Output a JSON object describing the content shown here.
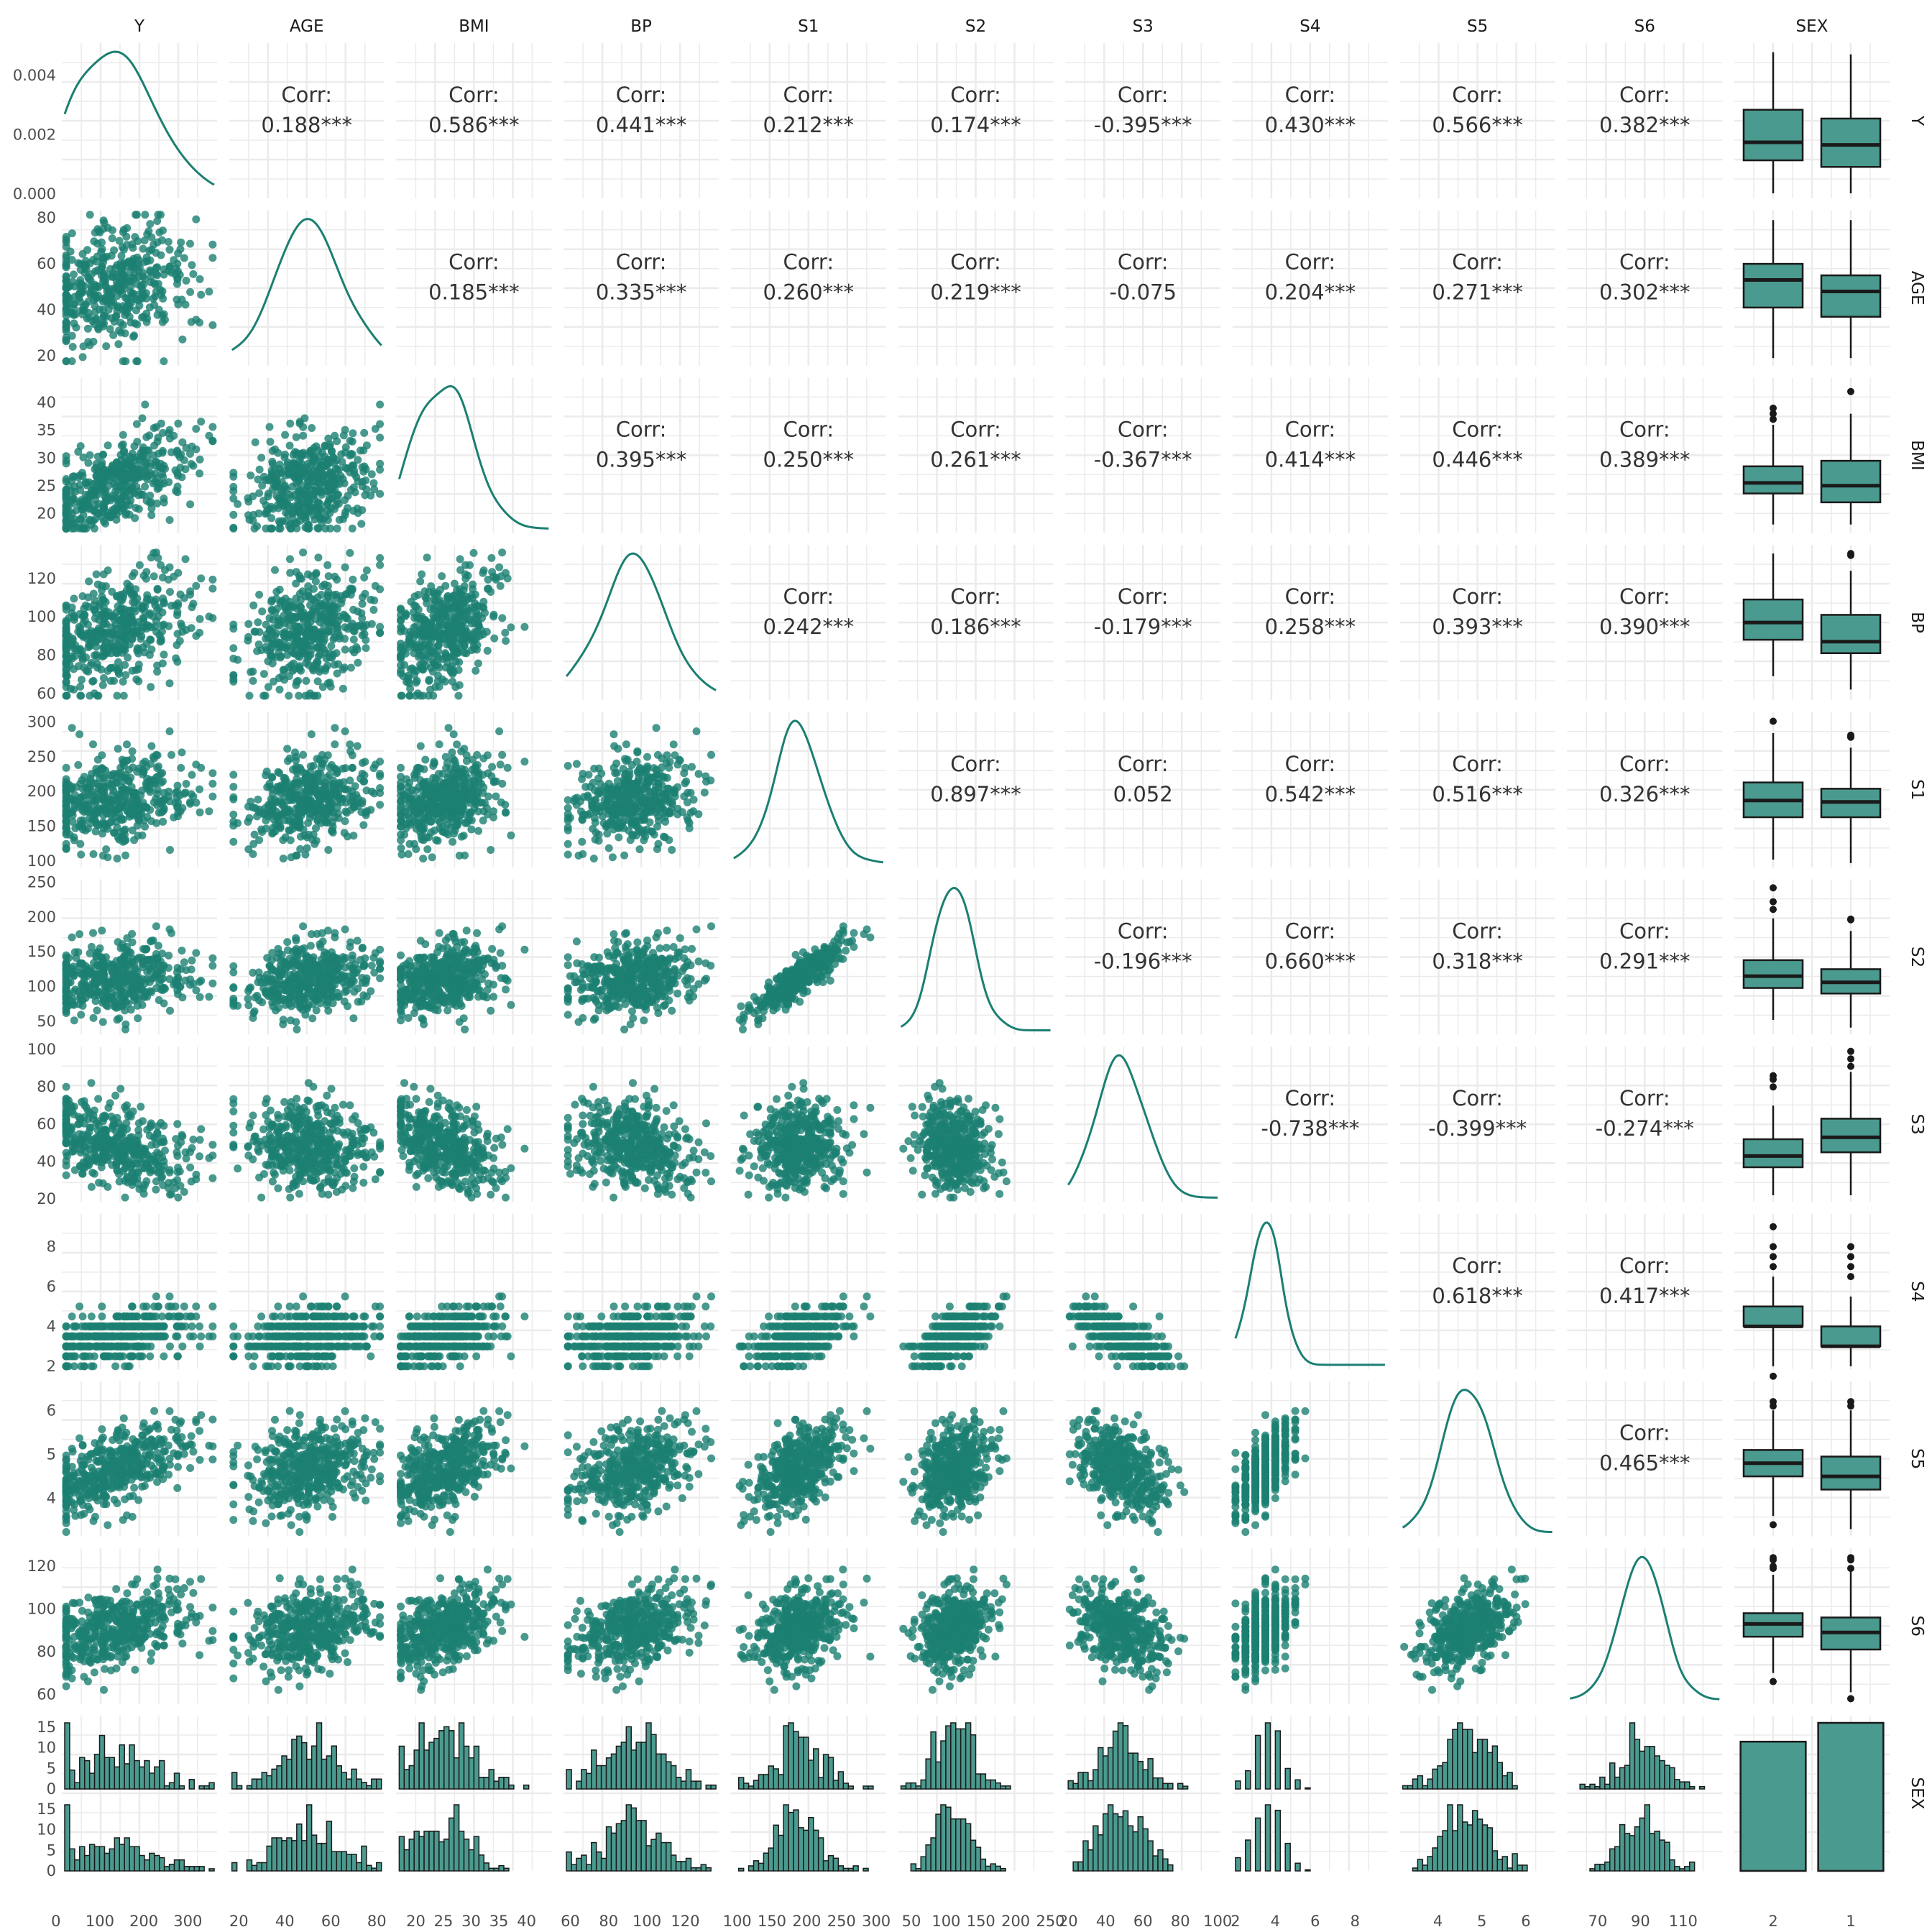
{
  "chart_data": {
    "type": "scatter_matrix",
    "variables": [
      "Y",
      "AGE",
      "BMI",
      "BP",
      "S1",
      "S2",
      "S3",
      "S4",
      "S5",
      "S6",
      "SEX"
    ],
    "ranges": {
      "Y": [
        20,
        360
      ],
      "AGE": [
        17,
        82
      ],
      "BMI": [
        17,
        44
      ],
      "BP": [
        58,
        136
      ],
      "S1": [
        95,
        310
      ],
      "S2": [
        35,
        250
      ],
      "S3": [
        20,
        100
      ],
      "S4": [
        2,
        9.5
      ],
      "S5": [
        3.2,
        6.6
      ],
      "S6": [
        57,
        127
      ]
    },
    "ticks": {
      "Y": [
        0,
        100,
        200,
        300
      ],
      "AGE": [
        20,
        40,
        60,
        80
      ],
      "BMI": [
        20,
        25,
        30,
        35,
        40
      ],
      "BP": [
        60,
        80,
        100,
        120
      ],
      "S1": [
        100,
        150,
        200,
        250,
        300
      ],
      "S2": [
        50,
        100,
        150,
        200,
        250
      ],
      "S3": [
        20,
        40,
        60,
        80,
        100
      ],
      "S4": [
        2,
        4,
        6,
        8
      ],
      "S5": [
        4,
        5,
        6
      ],
      "S6": [
        70,
        90,
        110
      ]
    },
    "bottom_tick_labels": {
      "Y": [
        "0",
        "100",
        "200",
        "300"
      ],
      "AGE": [
        "20",
        "40",
        "60",
        "80"
      ],
      "BMI": [
        "20",
        "25",
        "30",
        "35",
        "40"
      ],
      "BP": [
        "60",
        "80",
        "100",
        "120"
      ],
      "S1": [
        "100",
        "150",
        "200",
        "250",
        "300"
      ],
      "S2": [
        "50",
        "100",
        "150",
        "200",
        "250"
      ],
      "S3": [
        "20",
        "40",
        "60",
        "80",
        "100"
      ],
      "S4": [
        "2",
        "4",
        "6",
        "8"
      ],
      "S5": [
        "4",
        "5",
        "6"
      ],
      "S6": [
        "70",
        "90",
        "110"
      ],
      "SEX": [
        "2",
        "1"
      ]
    },
    "left_tick_labels": {
      "Y": [
        "0.000",
        "0.002",
        "0.004"
      ],
      "AGE": [
        "20",
        "40",
        "60",
        "80"
      ],
      "BMI": [
        "20",
        "25",
        "30",
        "35",
        "40"
      ],
      "BP": [
        "60",
        "80",
        "100",
        "120"
      ],
      "S1": [
        "100",
        "150",
        "200",
        "250",
        "300"
      ],
      "S2": [
        "50",
        "100",
        "150",
        "200",
        "250"
      ],
      "S3": [
        "20",
        "40",
        "60",
        "80",
        "100"
      ],
      "S4": [
        "2",
        "4",
        "6",
        "8"
      ],
      "S5": [
        "4",
        "5",
        "6"
      ],
      "S6": [
        "60",
        "80",
        "100",
        "120"
      ]
    },
    "sex_hist_ticks": [
      "0",
      "5",
      "10",
      "15"
    ],
    "corr_label": "Corr:",
    "correlations": {
      "Y-AGE": "0.188***",
      "Y-BMI": "0.586***",
      "Y-BP": "0.441***",
      "Y-S1": "0.212***",
      "Y-S2": "0.174***",
      "Y-S3": "-0.395***",
      "Y-S4": "0.430***",
      "Y-S5": "0.566***",
      "Y-S6": "0.382***",
      "AGE-BMI": "0.185***",
      "AGE-BP": "0.335***",
      "AGE-S1": "0.260***",
      "AGE-S2": "0.219***",
      "AGE-S3": "-0.075",
      "AGE-S4": "0.204***",
      "AGE-S5": "0.271***",
      "AGE-S6": "0.302***",
      "BMI-BP": "0.395***",
      "BMI-S1": "0.250***",
      "BMI-S2": "0.261***",
      "BMI-S3": "-0.367***",
      "BMI-S4": "0.414***",
      "BMI-S5": "0.446***",
      "BMI-S6": "0.389***",
      "BP-S1": "0.242***",
      "BP-S2": "0.186***",
      "BP-S3": "-0.179***",
      "BP-S4": "0.258***",
      "BP-S5": "0.393***",
      "BP-S6": "0.390***",
      "S1-S2": "0.897***",
      "S1-S3": "0.052",
      "S1-S4": "0.542***",
      "S1-S5": "0.516***",
      "S1-S6": "0.326***",
      "S2-S3": "-0.196***",
      "S2-S4": "0.660***",
      "S2-S5": "0.318***",
      "S2-S6": "0.291***",
      "S3-S4": "-0.738***",
      "S3-S5": "-0.399***",
      "S3-S6": "-0.274***",
      "S4-S5": "0.618***",
      "S4-S6": "0.417***",
      "S5-S6": "0.465***"
    },
    "sex_levels": [
      "2",
      "1"
    ],
    "sex_counts": [
      206,
      236
    ],
    "boxplots": {
      "Y": [
        [
          25,
          100,
          141,
          215,
          346,
          []
        ],
        [
          25,
          85,
          135,
          195,
          341,
          []
        ]
      ],
      "AGE": [
        [
          19,
          41,
          53,
          60,
          79,
          []
        ],
        [
          19,
          37,
          48,
          55,
          79,
          []
        ]
      ],
      "BMI": [
        [
          18,
          23.6,
          25.5,
          28.5,
          36,
          [
            37,
            38,
            39
          ]
        ],
        [
          18,
          22,
          25,
          29.5,
          38,
          [
            42
          ]
        ]
      ],
      "BP": [
        [
          69,
          88,
          97,
          109,
          133,
          []
        ],
        [
          62,
          81,
          87,
          101,
          124,
          [
            132,
            133
          ]
        ]
      ],
      "S1": [
        [
          102,
          163,
          187,
          213,
          284,
          [
            301
          ]
        ],
        [
          97,
          163,
          185,
          204,
          263,
          [
            278,
            279,
            281
          ]
        ]
      ],
      "S2": [
        [
          52,
          98,
          115,
          138,
          198,
          [
            211,
            222,
            242
          ]
        ],
        [
          41,
          90,
          106,
          125,
          180,
          [
            196,
            197
          ]
        ]
      ],
      "S3": [
        [
          22,
          37,
          43,
          52,
          70,
          [
            80,
            84,
            86
          ]
        ],
        [
          22,
          45,
          53,
          63,
          88,
          [
            91,
            95,
            99
          ]
        ]
      ],
      "S4": [
        [
          2,
          4,
          4,
          5,
          6.5,
          [
            7,
            7.5,
            8,
            9,
            1.5
          ]
        ],
        [
          2,
          3,
          3,
          4,
          5.5,
          [
            6.5,
            7,
            7.5,
            8
          ]
        ]
      ],
      "S5": [
        [
          3.6,
          4.5,
          4.8,
          5.1,
          6.0,
          [
            6.1,
            6.2,
            3.4
          ]
        ],
        [
          3.3,
          4.2,
          4.5,
          4.95,
          6.0,
          [
            6.1,
            6.2
          ]
        ]
      ],
      "S6": [
        [
          70,
          87,
          93,
          98,
          116,
          [
            119,
            120,
            123,
            124,
            66
          ]
        ],
        [
          61,
          81,
          89,
          96,
          118,
          [
            119,
            123,
            124,
            58
          ]
        ]
      ]
    },
    "colors": {
      "teal": "#1b7f72",
      "fill": "#4a9a8f",
      "grid": "#ebebeb",
      "outline": "#1a1a1a"
    }
  }
}
